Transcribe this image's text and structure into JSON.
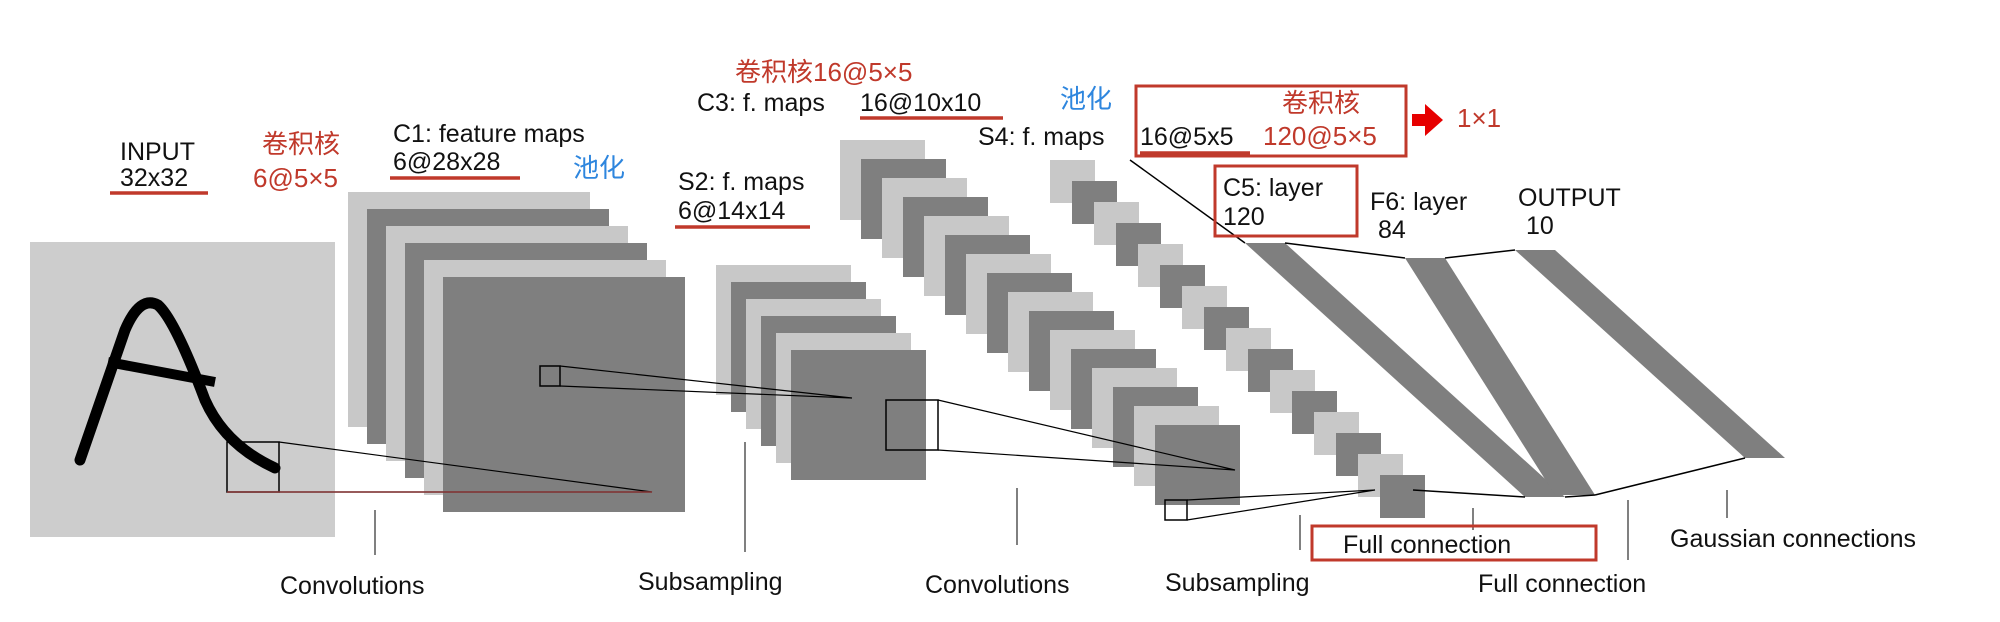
{
  "colors": {
    "light": "#c8c8c8",
    "dark": "#7f7f7f",
    "accent_red": "#c0392b",
    "accent_blue": "#2e86de",
    "input_bg": "#cdcdcd"
  },
  "labels": {
    "input_name": "INPUT",
    "input_size": "32x32",
    "kernel1_name": "卷积核",
    "kernel1_size": "6@5×5",
    "c1_name": "C1: feature maps",
    "c1_size": "6@28x28",
    "pool1": "池化",
    "s2_name": "S2: f. maps",
    "s2_size": "6@14x14",
    "kernel2": "卷积核16@5×5",
    "c3_name": "C3: f. maps",
    "c3_size": "16@10x10",
    "pool2": "池化",
    "s4_name": "S4: f. maps",
    "s4_size": "16@5x5",
    "kernel3_name": "卷积核",
    "kernel3_size": "120@5×5",
    "one_by_one": "1×1",
    "c5_name": "C5: layer",
    "c5_size": "120",
    "f6_name": "F6: layer",
    "f6_size": "84",
    "output_name": "OUTPUT",
    "output_size": "10"
  },
  "bottom_labels": {
    "conv1": "Convolutions",
    "sub1": "Subsampling",
    "conv2": "Convolutions",
    "sub2": "Subsampling",
    "full_boxed": "Full connection",
    "full2": "Full connection",
    "gaussian": "Gaussian connections"
  }
}
